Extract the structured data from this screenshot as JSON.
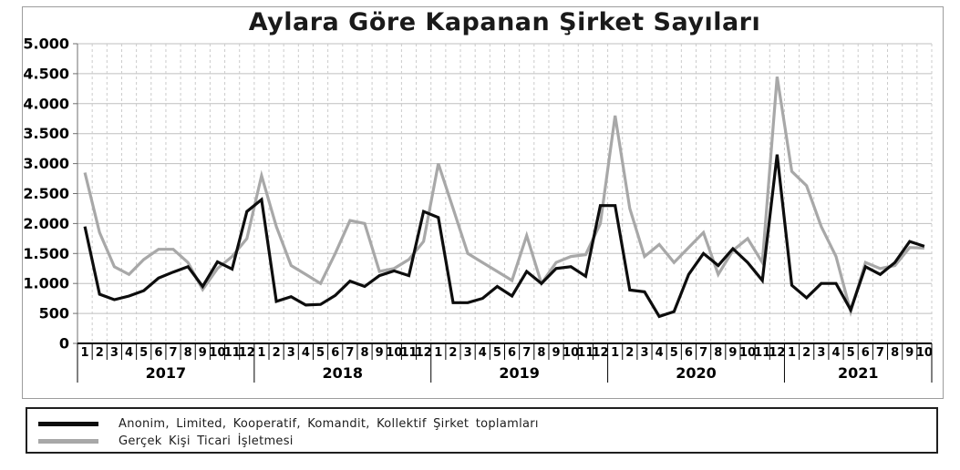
{
  "title": "Aylara Göre Kapanan Şirket Sayıları",
  "colors": {
    "series_black": "#0d0d0d",
    "series_gray": "#a8a8a8",
    "grid_solid": "#bfbfbf",
    "grid_dashed": "#cbcbcb",
    "axis_line": "#000000",
    "left_axis": "#6f6f6f",
    "frame": "#9d9d9d",
    "legend_border": "#1f1f1f",
    "text": "#000000"
  },
  "y_axis": {
    "tick_labels": [
      "0",
      "500",
      "1.000",
      "1.500",
      "2.000",
      "2.500",
      "3.000",
      "3.500",
      "4.000",
      "4.500",
      "5.000"
    ],
    "min": 0,
    "max": 5000,
    "step": 500
  },
  "x_axis": {
    "years": [
      {
        "label": "2017",
        "months": 12
      },
      {
        "label": "2018",
        "months": 12
      },
      {
        "label": "2019",
        "months": 12
      },
      {
        "label": "2020",
        "months": 12
      },
      {
        "label": "2021",
        "months": 10
      }
    ]
  },
  "legend": [
    {
      "label": "Anonim, Limited, Kooperatif, Komandit, Kollektif Şirket toplamları",
      "color": "#0d0d0d"
    },
    {
      "label": "Gerçek Kişi Ticari İşletmesi",
      "color": "#a8a8a8"
    }
  ],
  "chart_data": {
    "type": "line",
    "title": "Aylara Göre Kapanan Şirket Sayıları",
    "x_categories": "months 1-12 of 2017,2018,2019,2020 and 1-10 of 2021",
    "ylim": [
      0,
      5000
    ],
    "y_step": 500,
    "grid": true,
    "legend_position": "bottom",
    "series": [
      {
        "name": "Anonim, Limited, Kooperatif, Komandit, Kollektif Şirket toplamları",
        "color": "#0d0d0d",
        "values": [
          1950,
          820,
          730,
          790,
          880,
          1090,
          1190,
          1280,
          950,
          1360,
          1240,
          2200,
          2400,
          700,
          780,
          640,
          650,
          800,
          1040,
          950,
          1130,
          1210,
          1130,
          2200,
          2100,
          680,
          680,
          750,
          950,
          790,
          1200,
          1000,
          1250,
          1280,
          1120,
          2300,
          2300,
          890,
          860,
          450,
          530,
          1150,
          1500,
          1300,
          1580,
          1350,
          1050,
          3150,
          970,
          760,
          1000,
          1000,
          560,
          1280,
          1150,
          1350,
          1700,
          1620
        ]
      },
      {
        "name": "Gerçek Kişi Ticari İşletmesi",
        "color": "#a8a8a8",
        "values": [
          2850,
          1850,
          1280,
          1150,
          1400,
          1570,
          1570,
          1350,
          900,
          1250,
          1450,
          1750,
          2800,
          1950,
          1300,
          1150,
          1000,
          1500,
          2050,
          2000,
          1200,
          1250,
          1400,
          1700,
          3000,
          2250,
          1500,
          1350,
          1200,
          1050,
          1800,
          1000,
          1350,
          1450,
          1480,
          2000,
          3800,
          2250,
          1450,
          1650,
          1350,
          1600,
          1850,
          1150,
          1550,
          1750,
          1350,
          4450,
          2870,
          2630,
          1950,
          1450,
          530,
          1350,
          1250,
          1300,
          1600,
          1590
        ]
      }
    ]
  }
}
